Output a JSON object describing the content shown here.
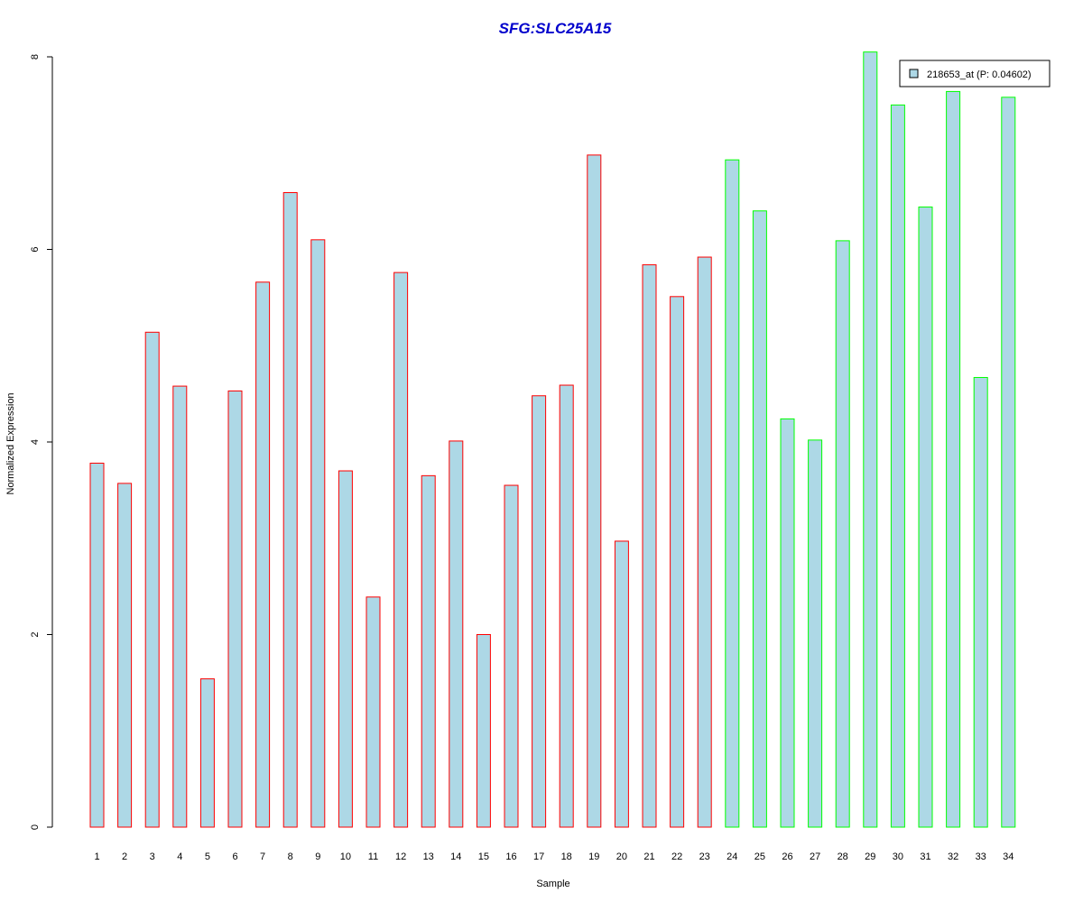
{
  "chart_data": {
    "type": "bar",
    "title": "SFG:SLC25A15",
    "xlabel": "Sample",
    "ylabel": "Normalized Expression",
    "ylim": [
      0,
      8
    ],
    "yticks": [
      "0",
      "2",
      "4",
      "6",
      "8"
    ],
    "grid": false,
    "legend_position": "top-right",
    "categories": [
      "1",
      "2",
      "3",
      "4",
      "5",
      "6",
      "7",
      "8",
      "9",
      "10",
      "11",
      "12",
      "13",
      "14",
      "15",
      "16",
      "17",
      "18",
      "19",
      "20",
      "21",
      "22",
      "23",
      "24",
      "25",
      "26",
      "27",
      "28",
      "29",
      "30",
      "31",
      "32",
      "33",
      "34"
    ],
    "series": [
      {
        "name": "218653_at (P: 0.04602)",
        "values": [
          3.78,
          3.57,
          5.14,
          4.58,
          1.54,
          4.53,
          5.66,
          6.59,
          6.1,
          3.7,
          2.39,
          5.76,
          3.65,
          4.01,
          2.0,
          3.55,
          4.48,
          4.59,
          6.98,
          2.97,
          5.84,
          5.51,
          5.92,
          6.93,
          6.4,
          4.24,
          4.02,
          6.09,
          8.05,
          7.5,
          6.44,
          7.64,
          4.67,
          7.58
        ],
        "groups": [
          "red",
          "red",
          "red",
          "red",
          "red",
          "red",
          "red",
          "red",
          "red",
          "red",
          "red",
          "red",
          "red",
          "red",
          "red",
          "red",
          "red",
          "red",
          "red",
          "red",
          "red",
          "red",
          "red",
          "green",
          "green",
          "green",
          "green",
          "green",
          "green",
          "green",
          "green",
          "green",
          "green",
          "green"
        ]
      }
    ],
    "colors": {
      "title": "#0000CC",
      "bar_fill": "#ADD8E6",
      "red_border": "#FF0000",
      "green_border": "#00FF00",
      "axis": "#000000"
    }
  }
}
